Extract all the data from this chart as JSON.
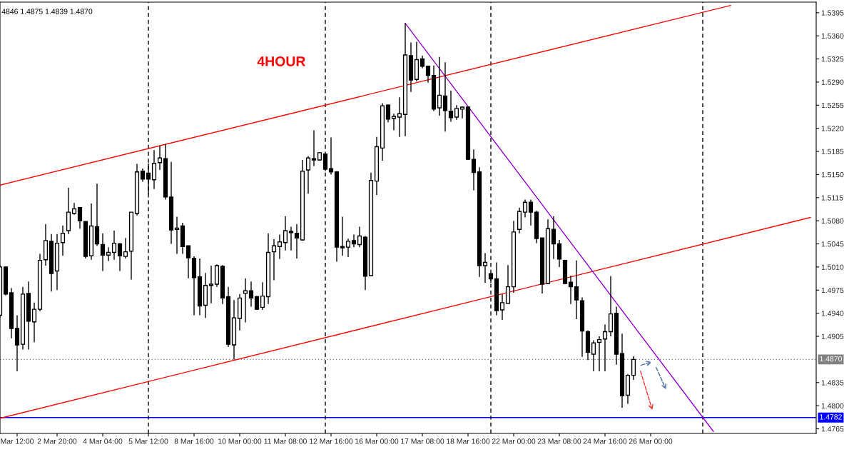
{
  "chart_data": {
    "type": "candlestick",
    "annotations": [
      "4846 1.4875 1.4839 1.4870",
      "4HOUR"
    ],
    "categories": [
      null,
      null,
      null,
      "Mar 12:00",
      null,
      null,
      null,
      null,
      null,
      null,
      "2 Mar 20:00",
      null,
      null,
      null,
      null,
      null,
      null,
      null,
      "4 Mar 04:00",
      null,
      null,
      null,
      null,
      null,
      null,
      null,
      "5 Mar 12:00",
      null,
      null,
      null,
      null,
      null,
      null,
      null,
      "8 Mar 16:00",
      null,
      null,
      null,
      null,
      null,
      null,
      null,
      "10 Mar 00:00",
      null,
      null,
      null,
      null,
      null,
      null,
      null,
      "11 Mar 08:00",
      null,
      null,
      null,
      null,
      null,
      null,
      null,
      "12 Mar 16:00",
      null,
      null,
      null,
      null,
      null,
      null,
      null,
      "16 Mar 00:00",
      null,
      null,
      null,
      null,
      null,
      null,
      null,
      "17 Mar 08:00",
      null,
      null,
      null,
      null,
      null,
      null,
      null,
      "18 Mar 16:00",
      null,
      null,
      null,
      null,
      null,
      null,
      null,
      "22 Mar 00:00",
      null,
      null,
      null,
      null,
      null,
      null,
      null,
      "23 Mar 08:00",
      null,
      null,
      null,
      null,
      null,
      null,
      null,
      "24 Mar 16:00",
      null,
      null,
      null,
      null,
      null,
      null,
      null,
      "26 Mar 00:00",
      null,
      null,
      null,
      null,
      null,
      null,
      null,
      null,
      null,
      null,
      null,
      null,
      null,
      null,
      null,
      null,
      null,
      null,
      null,
      null,
      null,
      null,
      null,
      null,
      null,
      null,
      null,
      null
    ],
    "ohlc": [
      [
        1.4937,
        1.5013,
        1.4934,
        1.501
      ],
      [
        1.501,
        1.5011,
        1.4967,
        1.4969
      ],
      [
        1.4971,
        1.4978,
        1.4902,
        1.4917
      ],
      [
        1.4917,
        1.4937,
        1.4852,
        1.4892
      ],
      [
        1.4893,
        1.498,
        1.4885,
        1.4969
      ],
      [
        1.497,
        1.4988,
        1.4885,
        1.4928
      ],
      [
        1.4927,
        1.4956,
        1.4896,
        1.4946
      ],
      [
        1.4946,
        1.503,
        1.4943,
        1.502
      ],
      [
        1.5021,
        1.5075,
        1.5012,
        1.505
      ],
      [
        1.5049,
        1.506,
        1.4973,
        1.5
      ],
      [
        1.5004,
        1.506,
        1.4975,
        1.5046
      ],
      [
        1.5047,
        1.5073,
        1.5027,
        1.5061
      ],
      [
        1.5065,
        1.513,
        1.506,
        1.5093
      ],
      [
        1.5091,
        1.5107,
        1.5089,
        1.5098
      ],
      [
        1.51,
        1.51,
        1.5068,
        1.508
      ],
      [
        1.5079,
        1.5079,
        1.5023,
        1.5026
      ],
      [
        1.5027,
        1.5106,
        1.5021,
        1.5072
      ],
      [
        1.5071,
        1.5136,
        1.5042,
        1.5045
      ],
      [
        1.5044,
        1.5061,
        1.5004,
        1.5028
      ],
      [
        1.5028,
        1.504,
        1.5019,
        1.5032
      ],
      [
        1.5032,
        1.5065,
        1.5021,
        1.5046
      ],
      [
        1.5045,
        1.5046,
        1.5004,
        1.5027
      ],
      [
        1.5026,
        1.5054,
        1.5023,
        1.5033
      ],
      [
        1.5034,
        1.5093,
        1.4991,
        1.5093
      ],
      [
        1.5091,
        1.5166,
        1.5088,
        1.5154
      ],
      [
        1.5155,
        1.5159,
        1.5139,
        1.5143
      ],
      [
        1.5152,
        1.5167,
        1.512,
        1.5143
      ],
      [
        1.5142,
        1.5187,
        1.5128,
        1.5167
      ],
      [
        1.5168,
        1.5194,
        1.5157,
        1.5175
      ],
      [
        1.5174,
        1.5196,
        1.5112,
        1.5116
      ],
      [
        1.5116,
        1.5169,
        1.5045,
        1.5066
      ],
      [
        1.5067,
        1.5086,
        1.503,
        1.5069
      ],
      [
        1.5072,
        1.5077,
        1.503,
        1.5041
      ],
      [
        1.5042,
        1.5042,
        1.4993,
        1.5024
      ],
      [
        1.5023,
        1.5026,
        1.4937,
        1.4994
      ],
      [
        1.4995,
        1.5023,
        1.4937,
        1.4951
      ],
      [
        1.4952,
        1.5001,
        1.4933,
        1.4982
      ],
      [
        1.4982,
        1.5012,
        1.4955,
        1.4984
      ],
      [
        1.4984,
        1.5014,
        1.498,
        1.5012
      ],
      [
        1.5011,
        1.5013,
        1.4954,
        1.4963
      ],
      [
        1.4965,
        1.498,
        1.4889,
        1.4893
      ],
      [
        1.4892,
        1.496,
        1.487,
        1.4933
      ],
      [
        1.4932,
        1.4969,
        1.4914,
        1.4963
      ],
      [
        1.497,
        1.4993,
        1.4926,
        1.4974
      ],
      [
        1.4974,
        1.4988,
        1.495,
        1.4963
      ],
      [
        1.4965,
        1.4966,
        1.4945,
        1.4946
      ],
      [
        1.4949,
        1.4987,
        1.4945,
        1.4966
      ],
      [
        1.4965,
        1.5061,
        1.4954,
        1.5032
      ],
      [
        1.5033,
        1.5052,
        1.499,
        1.5042
      ],
      [
        1.5041,
        1.5059,
        1.5022,
        1.5048
      ],
      [
        1.5047,
        1.5087,
        1.5035,
        1.5065
      ],
      [
        1.5064,
        1.5071,
        1.5035,
        1.5062
      ],
      [
        1.5061,
        1.5075,
        1.5023,
        1.5054
      ],
      [
        1.5051,
        1.5172,
        1.505,
        1.5155
      ],
      [
        1.5157,
        1.5178,
        1.5121,
        1.5175
      ],
      [
        1.5174,
        1.5217,
        1.5163,
        1.5172
      ],
      [
        1.5172,
        1.5184,
        1.5171,
        1.5183
      ],
      [
        1.5181,
        1.5181,
        1.5155,
        1.5158
      ],
      [
        1.5159,
        1.5206,
        1.515,
        1.5154
      ],
      [
        1.5154,
        1.5155,
        1.5018,
        1.504
      ],
      [
        1.5041,
        1.5086,
        1.5027,
        1.5039
      ],
      [
        1.504,
        1.5053,
        1.5025,
        1.5049
      ],
      [
        1.505,
        1.5059,
        1.504,
        1.5045
      ],
      [
        1.5044,
        1.5071,
        1.504,
        1.5057
      ],
      [
        1.5055,
        1.5057,
        1.4975,
        1.4996
      ],
      [
        1.4997,
        1.5153,
        1.4997,
        1.5141
      ],
      [
        1.514,
        1.5207,
        1.5119,
        1.5192
      ],
      [
        1.519,
        1.5258,
        1.5171,
        1.5254
      ],
      [
        1.5255,
        1.5256,
        1.5229,
        1.5234
      ],
      [
        1.5235,
        1.5242,
        1.5217,
        1.5238
      ],
      [
        1.5237,
        1.5267,
        1.5207,
        1.5242
      ],
      [
        1.5241,
        1.5379,
        1.5208,
        1.5331
      ],
      [
        1.533,
        1.535,
        1.5275,
        1.5293
      ],
      [
        1.5294,
        1.5351,
        1.5291,
        1.5324
      ],
      [
        1.5325,
        1.533,
        1.5311,
        1.5314
      ],
      [
        1.5314,
        1.5315,
        1.5289,
        1.53
      ],
      [
        1.53,
        1.5315,
        1.5246,
        1.5249
      ],
      [
        1.5251,
        1.5328,
        1.5239,
        1.527
      ],
      [
        1.5269,
        1.532,
        1.5215,
        1.5247
      ],
      [
        1.5246,
        1.5277,
        1.523,
        1.5236
      ],
      [
        1.5237,
        1.5255,
        1.5233,
        1.525
      ],
      [
        1.5249,
        1.5253,
        1.5235,
        1.5252
      ],
      [
        1.5252,
        1.5253,
        1.5172,
        1.5173
      ],
      [
        1.5173,
        1.5188,
        1.5126,
        1.5153
      ],
      [
        1.5154,
        1.5161,
        1.4995,
        1.5012
      ],
      [
        1.5012,
        1.5031,
        1.4986,
        1.5017
      ],
      [
        1.5,
        1.5,
        1.4986,
        1.4992
      ],
      [
        1.4992,
        1.5017,
        1.4937,
        1.4944
      ],
      [
        1.4945,
        1.4969,
        1.493,
        1.4956
      ],
      [
        1.4955,
        1.5013,
        1.4955,
        1.498
      ],
      [
        1.498,
        1.508,
        1.4971,
        1.5063
      ],
      [
        1.5067,
        1.51,
        1.5061,
        1.5094
      ],
      [
        1.5093,
        1.5112,
        1.5085,
        1.5108
      ],
      [
        1.5108,
        1.5112,
        1.5073,
        1.5093
      ],
      [
        1.5093,
        1.5095,
        1.5046,
        1.5053
      ],
      [
        1.5054,
        1.5054,
        1.497,
        1.4984
      ],
      [
        1.4985,
        1.5082,
        1.4984,
        1.5068
      ],
      [
        1.5067,
        1.5087,
        1.5022,
        1.5045
      ],
      [
        1.5045,
        1.5051,
        1.501,
        1.5022
      ],
      [
        1.502,
        1.5021,
        1.4984,
        1.4985
      ],
      [
        1.4987,
        1.4997,
        1.4954,
        1.498
      ],
      [
        1.498,
        1.502,
        1.4931,
        1.496
      ],
      [
        1.4959,
        1.4964,
        1.4874,
        1.4913
      ],
      [
        1.4912,
        1.4914,
        1.4869,
        1.4881
      ],
      [
        1.4878,
        1.4899,
        1.4852,
        1.4895
      ],
      [
        1.4896,
        1.4905,
        1.4852,
        1.49
      ],
      [
        1.4901,
        1.4923,
        1.4852,
        1.4912
      ],
      [
        1.4912,
        1.4996,
        1.4905,
        1.4939
      ],
      [
        1.494,
        1.495,
        1.4862,
        1.4878
      ],
      [
        1.4879,
        1.4909,
        1.4797,
        1.4815
      ],
      [
        1.4816,
        1.4848,
        1.4803,
        1.4846
      ],
      [
        1.4846,
        1.4875,
        1.4839,
        1.487
      ],
      null,
      null,
      null,
      null,
      null,
      null,
      null,
      null,
      null,
      null,
      null,
      null,
      null,
      null,
      null,
      null,
      null,
      null,
      null,
      null,
      null,
      null,
      null,
      null,
      null,
      null,
      null,
      null,
      null,
      null,
      null
    ],
    "series": [
      {
        "type": "line",
        "color": "#ff0000",
        "values": [
          1.5134,
          null,
          null,
          null,
          null,
          null,
          null,
          null,
          null,
          null,
          null,
          null,
          null,
          null,
          null,
          null,
          null,
          null,
          null,
          null,
          null,
          null,
          null,
          null,
          null,
          null,
          null,
          null,
          null,
          null,
          null,
          null,
          null,
          null,
          null,
          null,
          null,
          null,
          null,
          null,
          null,
          null,
          null,
          null,
          null,
          null,
          null,
          null,
          null,
          null,
          null,
          null,
          null,
          null,
          null,
          null,
          null,
          null,
          null,
          null,
          null,
          null,
          null,
          null,
          null,
          null,
          null,
          null,
          null,
          null,
          null,
          null,
          null,
          null,
          null,
          null,
          null,
          null,
          null,
          null,
          null,
          null,
          null,
          null,
          null,
          null,
          null,
          null,
          null,
          null,
          null,
          null,
          null,
          null,
          null,
          null,
          null,
          null,
          null,
          null,
          null,
          null,
          null,
          null,
          null,
          null,
          null,
          null,
          null,
          null,
          null,
          null,
          null,
          null,
          null,
          null,
          null,
          null,
          null,
          null,
          null,
          null,
          null,
          null,
          null,
          null,
          null,
          null,
          1.5406,
          null,
          null,
          null,
          null,
          null,
          null,
          null,
          null,
          null,
          null,
          null,
          null,
          null,
          null
        ]
      },
      {
        "type": "line",
        "color": "#ff0000",
        "values": [
          1.4781,
          null,
          null,
          null,
          null,
          null,
          null,
          null,
          null,
          null,
          null,
          null,
          null,
          null,
          null,
          null,
          null,
          null,
          null,
          null,
          null,
          null,
          null,
          null,
          null,
          null,
          null,
          null,
          null,
          null,
          null,
          null,
          null,
          null,
          null,
          null,
          null,
          null,
          null,
          null,
          null,
          null,
          null,
          null,
          null,
          null,
          null,
          null,
          null,
          null,
          null,
          null,
          null,
          null,
          null,
          null,
          null,
          null,
          null,
          null,
          null,
          null,
          null,
          null,
          null,
          null,
          null,
          null,
          null,
          null,
          null,
          null,
          null,
          null,
          null,
          null,
          null,
          null,
          null,
          null,
          null,
          null,
          null,
          null,
          null,
          null,
          null,
          null,
          null,
          null,
          null,
          null,
          null,
          null,
          null,
          null,
          null,
          null,
          null,
          null,
          null,
          null,
          null,
          null,
          null,
          null,
          null,
          null,
          null,
          null,
          null,
          null,
          null,
          null,
          null,
          null,
          null,
          null,
          null,
          null,
          null,
          null,
          null,
          null,
          null,
          null,
          null,
          null,
          null,
          null,
          null,
          null,
          null,
          null,
          null,
          null,
          null,
          null,
          null,
          null,
          null,
          null,
          1.5085
        ]
      },
      {
        "type": "line",
        "color": "#9400d3",
        "values": [
          null,
          null,
          null,
          null,
          null,
          null,
          null,
          null,
          null,
          null,
          null,
          null,
          null,
          null,
          null,
          null,
          null,
          null,
          null,
          null,
          null,
          null,
          null,
          null,
          null,
          null,
          null,
          null,
          null,
          null,
          null,
          null,
          null,
          null,
          null,
          null,
          null,
          null,
          null,
          null,
          null,
          null,
          null,
          null,
          null,
          null,
          null,
          null,
          null,
          null,
          null,
          null,
          null,
          null,
          null,
          null,
          null,
          null,
          null,
          null,
          null,
          null,
          null,
          null,
          null,
          null,
          null,
          null,
          null,
          null,
          null,
          1.5379,
          null,
          null,
          null,
          null,
          null,
          null,
          null,
          null,
          null,
          null,
          null,
          null,
          null,
          null,
          null,
          null,
          null,
          null,
          null,
          null,
          null,
          null,
          null,
          null,
          null,
          null,
          null,
          null,
          null,
          null,
          null,
          null,
          null,
          null,
          null,
          null,
          null,
          null,
          null,
          null,
          null,
          null,
          null,
          null,
          null,
          null,
          null,
          null,
          null,
          null,
          null,
          null,
          null,
          1.4761,
          null,
          null,
          null,
          null,
          null,
          null,
          null,
          null,
          null,
          null,
          null,
          null,
          null,
          null,
          null,
          null,
          null
        ]
      }
    ],
    "ref_lines": [
      {
        "axis": "y",
        "value": 1.487,
        "label": "1.4870",
        "color": "#808080",
        "line_style": "dotted"
      },
      {
        "axis": "y",
        "value": 1.4782,
        "label": "1.4782",
        "color": "#0000ff",
        "line_style": "solid"
      }
    ],
    "ylim": [
      1.4758,
      1.5411
    ],
    "yticks": [
      1.5395,
      {
        "value": 1.536,
        "label": "1.5360"
      },
      1.5325,
      {
        "value": 1.529,
        "label": "1.5290"
      },
      1.5255,
      {
        "value": 1.522,
        "label": "1.5220"
      },
      1.5185,
      {
        "value": 1.515,
        "label": "1.5150"
      },
      1.5115,
      {
        "value": 1.508,
        "label": "1.5080"
      },
      1.5045,
      {
        "value": 1.501,
        "label": "1.5010"
      },
      1.4975,
      {
        "value": 1.494,
        "label": "1.4940"
      },
      1.4905,
      1.4835,
      {
        "value": 1.48,
        "label": "1.4800"
      },
      1.4765
    ],
    "legend": false
  }
}
